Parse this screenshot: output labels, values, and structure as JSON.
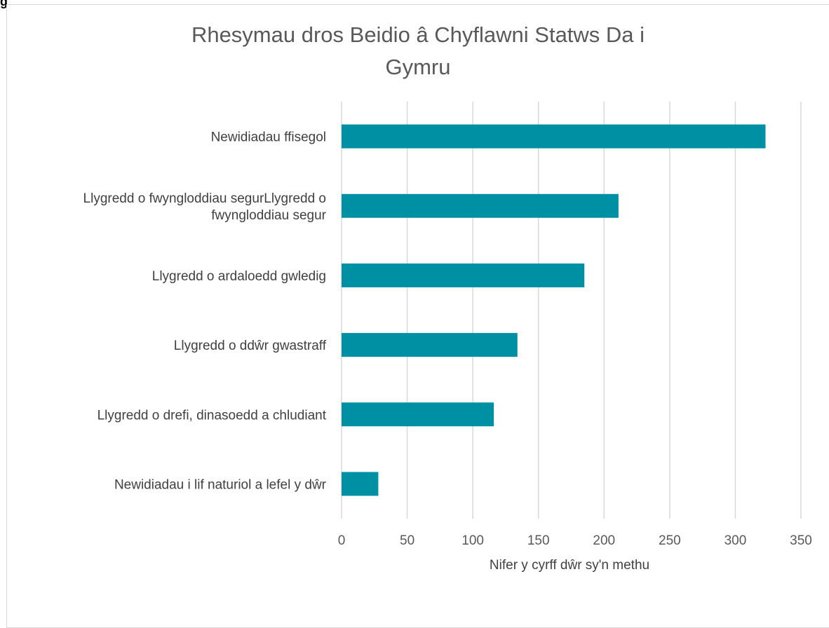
{
  "page": {
    "corner_text": "g"
  },
  "chart_data": {
    "type": "bar",
    "orientation": "horizontal",
    "title_lines": [
      "Rhesymau dros Beidio â Chyflawni Statws Da i",
      "Gymru"
    ],
    "xlabel": "Nifer y cyrff dŵr sy'n methu",
    "ylabel": "",
    "categories": [
      "Newidiadau ffisegol",
      "Llygredd o fwyngloddiau segurLlygredd o fwyngloddiau segur",
      "Llygredd o ardaloedd gwledig",
      "Llygredd o ddŵr gwastraff",
      "Llygredd o drefi, dinasoedd a chludiant",
      "Newidiadau i lif naturiol a lefel y dŵr"
    ],
    "category_label_lines": [
      [
        "Newidiadau ffisegol"
      ],
      [
        "Llygredd o fwyngloddiau segurLlygredd o",
        "fwyngloddiau segur"
      ],
      [
        "Llygredd o ardaloedd gwledig"
      ],
      [
        "Llygredd o ddŵr gwastraff"
      ],
      [
        "Llygredd o drefi, dinasoedd a chludiant"
      ],
      [
        "Newidiadau i lif naturiol a lefel y dŵr"
      ]
    ],
    "values": [
      323,
      211,
      185,
      134,
      116,
      28
    ],
    "xlim": [
      0,
      350
    ],
    "xticks": [
      0,
      50,
      100,
      150,
      200,
      250,
      300,
      350
    ],
    "grid": true,
    "legend": "none",
    "colors": {
      "bar": "#0090A3",
      "grid": "#d9d9d9",
      "title": "#595959",
      "text": "#404040"
    }
  }
}
